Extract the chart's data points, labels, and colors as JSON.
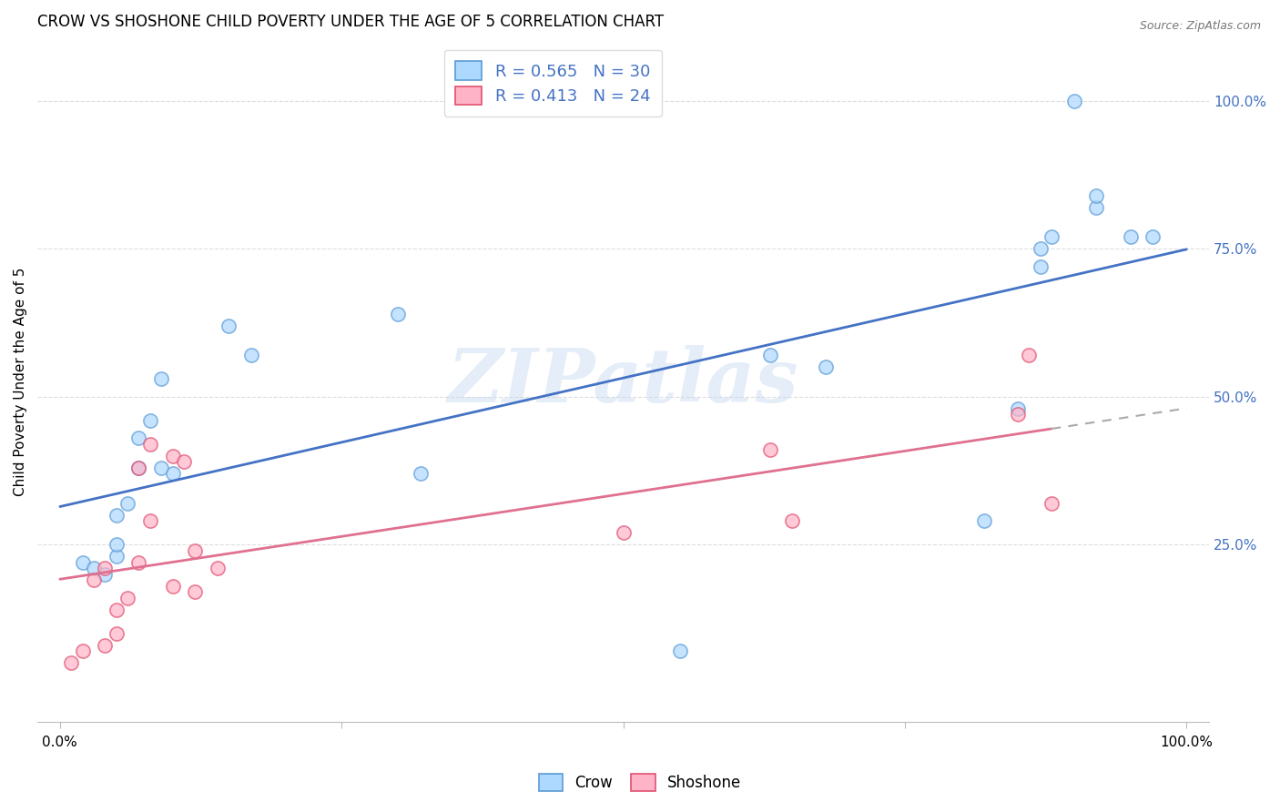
{
  "title": "CROW VS SHOSHONE CHILD POVERTY UNDER THE AGE OF 5 CORRELATION CHART",
  "source": "Source: ZipAtlas.com",
  "ylabel": "Child Poverty Under the Age of 5",
  "crow_label": "Crow",
  "shoshone_label": "Shoshone",
  "crow_R": "0.565",
  "crow_N": "30",
  "shoshone_R": "0.413",
  "shoshone_N": "24",
  "crow_color": "#add8ff",
  "crow_edge_color": "#5b9bd5",
  "shoshone_color": "#ffb3c6",
  "shoshone_edge_color": "#e05070",
  "crow_line_color": "#4472c4",
  "shoshone_line_color": "#e07090",
  "watermark": "ZIPatlas",
  "crow_x": [
    0.02,
    0.03,
    0.04,
    0.05,
    0.05,
    0.05,
    0.06,
    0.07,
    0.07,
    0.08,
    0.09,
    0.09,
    0.1,
    0.15,
    0.17,
    0.32,
    0.55,
    0.63,
    0.68,
    0.82,
    0.85,
    0.87,
    0.87,
    0.88,
    0.9,
    0.92,
    0.92,
    0.95,
    0.97,
    0.3
  ],
  "crow_y": [
    0.22,
    0.21,
    0.2,
    0.23,
    0.25,
    0.3,
    0.32,
    0.38,
    0.43,
    0.46,
    0.38,
    0.53,
    0.37,
    0.62,
    0.57,
    0.37,
    0.07,
    0.57,
    0.55,
    0.29,
    0.48,
    0.72,
    0.75,
    0.77,
    1.0,
    0.82,
    0.84,
    0.77,
    0.77,
    0.64
  ],
  "shoshone_x": [
    0.01,
    0.02,
    0.03,
    0.04,
    0.04,
    0.05,
    0.05,
    0.06,
    0.07,
    0.07,
    0.08,
    0.08,
    0.1,
    0.1,
    0.11,
    0.12,
    0.12,
    0.14,
    0.5,
    0.63,
    0.65,
    0.85,
    0.86,
    0.88
  ],
  "shoshone_y": [
    0.05,
    0.07,
    0.19,
    0.08,
    0.21,
    0.1,
    0.14,
    0.16,
    0.22,
    0.38,
    0.29,
    0.42,
    0.18,
    0.4,
    0.39,
    0.17,
    0.24,
    0.21,
    0.27,
    0.41,
    0.29,
    0.47,
    0.57,
    0.32
  ],
  "xlim": [
    -0.02,
    1.02
  ],
  "ylim": [
    -0.05,
    1.1
  ],
  "ytick_positions": [
    0.25,
    0.5,
    0.75,
    1.0
  ],
  "ytick_labels_right": [
    "25.0%",
    "50.0%",
    "75.0%",
    "100.0%"
  ],
  "xtick_positions": [
    0.0,
    0.25,
    0.5,
    0.75,
    1.0
  ],
  "xticklabels": [
    "0.0%",
    "",
    "",
    "",
    "100.0%"
  ],
  "grid_color": "#dddddd",
  "grid_linewidth": 0.8,
  "marker_size": 120,
  "marker_alpha": 0.7,
  "regression_linewidth": 2.0,
  "title_fontsize": 12,
  "tick_fontsize": 11,
  "right_tick_color": "#4472c4"
}
